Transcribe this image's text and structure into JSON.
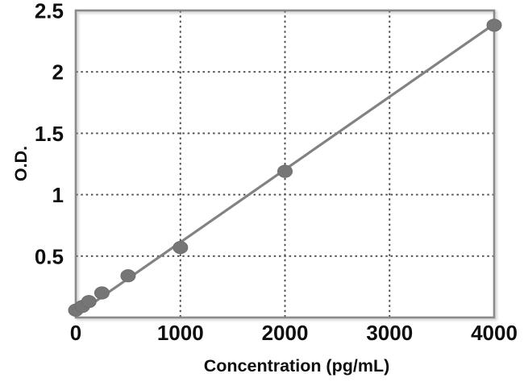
{
  "figure": {
    "background": "#ffffff"
  },
  "chart_data": {
    "type": "scatter",
    "title": "",
    "xlabel": "Concentration (pg/mL)",
    "ylabel": "O.D.",
    "x": [
      0,
      62.5,
      125,
      250,
      500,
      1000,
      2000,
      4000
    ],
    "y": [
      0.06,
      0.09,
      0.13,
      0.2,
      0.34,
      0.57,
      1.19,
      2.38
    ],
    "trendline": {
      "x": [
        0,
        4000
      ],
      "y": [
        0.02,
        2.39
      ]
    },
    "xlim": [
      0,
      4000
    ],
    "ylim": [
      0,
      2.5
    ],
    "xticks": [
      0,
      1000,
      2000,
      3000,
      4000
    ],
    "xtick_labels": [
      "0",
      "1000",
      "2000",
      "3000",
      "4000"
    ],
    "yticks": [
      0.5,
      1,
      1.5,
      2,
      2.5
    ],
    "ytick_labels": [
      "0.5",
      "1",
      "1.5",
      "2",
      "2.5"
    ],
    "grid": true,
    "legend": null,
    "colors": {
      "marker": "#767676",
      "trendline": "#828282",
      "frame": "#8a8a8a",
      "gridline": "#4a4a4a",
      "text": "#0e0e0e",
      "background": "#ffffff"
    }
  }
}
